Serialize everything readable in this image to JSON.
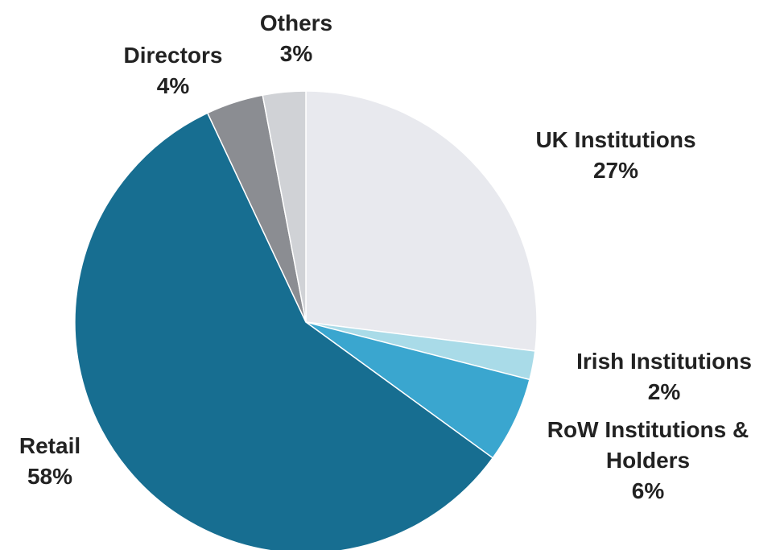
{
  "chart_data": {
    "type": "pie",
    "categories": [
      "UK Institutions",
      "Irish Institutions",
      "RoW Institutions & Holders",
      "Retail",
      "Directors",
      "Others"
    ],
    "values": [
      27,
      2,
      6,
      58,
      4,
      3
    ],
    "value_labels": [
      "27%",
      "2%",
      "6%",
      "58%",
      "4%",
      "3%"
    ],
    "colors": [
      "#e8e9ee",
      "#a9dbe8",
      "#3aa6cf",
      "#176e91",
      "#8b8d92",
      "#d0d2d6"
    ]
  }
}
